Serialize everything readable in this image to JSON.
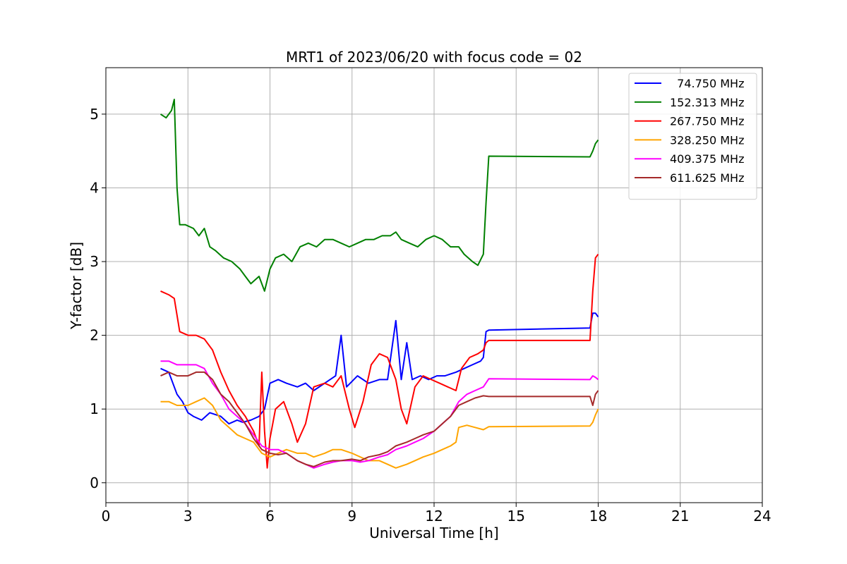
{
  "chart_data": {
    "type": "line",
    "title": "MRT1 of 2023/06/20 with focus code = 02",
    "xlabel": "Universal Time [h]",
    "ylabel": "Y-factor [dB]",
    "xlim": [
      0,
      24
    ],
    "ylim": [
      -0.27,
      5.63
    ],
    "xticks": [
      0,
      3,
      6,
      9,
      12,
      15,
      18,
      21,
      24
    ],
    "yticks": [
      0,
      1,
      2,
      3,
      4,
      5
    ],
    "grid": true,
    "legend_position": "top-right",
    "series": [
      {
        "name": "  74.750 MHz",
        "color": "#0000ff",
        "x": [
          2.0,
          2.3,
          2.6,
          2.8,
          3.0,
          3.2,
          3.5,
          3.8,
          4.2,
          4.5,
          4.8,
          5.0,
          5.3,
          5.6,
          5.8,
          6.0,
          6.3,
          6.6,
          7.0,
          7.3,
          7.6,
          8.0,
          8.4,
          8.6,
          8.8,
          9.2,
          9.6,
          10.0,
          10.3,
          10.6,
          10.8,
          11.0,
          11.2,
          11.5,
          11.8,
          12.1,
          12.4,
          12.8,
          13.1,
          13.4,
          13.7,
          13.8,
          13.9,
          14.0,
          17.7,
          17.8,
          17.9,
          18.0
        ],
        "y": [
          1.55,
          1.5,
          1.2,
          1.1,
          0.95,
          0.9,
          0.85,
          0.95,
          0.9,
          0.8,
          0.85,
          0.82,
          0.85,
          0.9,
          1.0,
          1.35,
          1.4,
          1.35,
          1.3,
          1.35,
          1.25,
          1.35,
          1.45,
          2.0,
          1.3,
          1.45,
          1.35,
          1.4,
          1.4,
          2.2,
          1.4,
          1.9,
          1.4,
          1.45,
          1.4,
          1.45,
          1.45,
          1.5,
          1.55,
          1.6,
          1.65,
          1.7,
          2.05,
          2.07,
          2.1,
          2.3,
          2.3,
          2.25
        ]
      },
      {
        "name": "152.313 MHz",
        "color": "#008000",
        "x": [
          2.0,
          2.2,
          2.4,
          2.5,
          2.6,
          2.7,
          2.9,
          3.2,
          3.4,
          3.6,
          3.8,
          4.0,
          4.3,
          4.6,
          4.9,
          5.1,
          5.3,
          5.6,
          5.8,
          6.0,
          6.2,
          6.5,
          6.8,
          7.1,
          7.4,
          7.7,
          8.0,
          8.3,
          8.6,
          8.9,
          9.2,
          9.5,
          9.8,
          10.1,
          10.4,
          10.6,
          10.8,
          11.1,
          11.4,
          11.7,
          12.0,
          12.3,
          12.6,
          12.9,
          13.1,
          13.4,
          13.6,
          13.8,
          13.9,
          14.0,
          17.7,
          17.8,
          17.9,
          18.0
        ],
        "y": [
          5.0,
          4.95,
          5.05,
          5.2,
          4.0,
          3.5,
          3.5,
          3.45,
          3.35,
          3.45,
          3.2,
          3.15,
          3.05,
          3.0,
          2.9,
          2.8,
          2.7,
          2.8,
          2.6,
          2.9,
          3.05,
          3.1,
          3.0,
          3.2,
          3.25,
          3.2,
          3.3,
          3.3,
          3.25,
          3.2,
          3.25,
          3.3,
          3.3,
          3.35,
          3.35,
          3.4,
          3.3,
          3.25,
          3.2,
          3.3,
          3.35,
          3.3,
          3.2,
          3.2,
          3.1,
          3.0,
          2.95,
          3.1,
          3.8,
          4.43,
          4.42,
          4.5,
          4.6,
          4.65
        ]
      },
      {
        "name": "267.750 MHz",
        "color": "#ff0000",
        "x": [
          2.0,
          2.3,
          2.5,
          2.7,
          3.0,
          3.3,
          3.6,
          3.9,
          4.2,
          4.5,
          4.8,
          5.1,
          5.4,
          5.6,
          5.7,
          5.8,
          5.9,
          6.0,
          6.2,
          6.5,
          6.8,
          7.0,
          7.3,
          7.6,
          8.0,
          8.3,
          8.6,
          8.9,
          9.1,
          9.4,
          9.7,
          10.0,
          10.3,
          10.6,
          10.8,
          11.0,
          11.3,
          11.6,
          11.9,
          12.2,
          12.5,
          12.8,
          13.0,
          13.3,
          13.6,
          13.8,
          13.9,
          14.0,
          17.7,
          17.8,
          17.9,
          18.0
        ],
        "y": [
          2.6,
          2.55,
          2.5,
          2.05,
          2.0,
          2.0,
          1.95,
          1.8,
          1.5,
          1.25,
          1.05,
          0.9,
          0.7,
          0.5,
          1.5,
          0.7,
          0.2,
          0.6,
          1.0,
          1.1,
          0.8,
          0.55,
          0.8,
          1.3,
          1.35,
          1.3,
          1.45,
          1.0,
          0.75,
          1.1,
          1.6,
          1.75,
          1.7,
          1.4,
          1.0,
          0.8,
          1.3,
          1.45,
          1.4,
          1.35,
          1.3,
          1.25,
          1.55,
          1.7,
          1.75,
          1.8,
          1.9,
          1.93,
          1.93,
          2.6,
          3.05,
          3.1
        ]
      },
      {
        "name": "328.250 MHz",
        "color": "#ffa500",
        "x": [
          2.0,
          2.3,
          2.6,
          3.0,
          3.3,
          3.6,
          3.9,
          4.2,
          4.5,
          4.8,
          5.1,
          5.4,
          5.7,
          6.0,
          6.3,
          6.6,
          7.0,
          7.3,
          7.6,
          8.0,
          8.3,
          8.6,
          9.0,
          9.3,
          9.6,
          10.0,
          10.3,
          10.6,
          11.0,
          11.3,
          11.6,
          12.0,
          12.3,
          12.6,
          12.8,
          12.9,
          13.2,
          13.5,
          13.8,
          14.0,
          17.7,
          17.8,
          17.9,
          18.0
        ],
        "y": [
          1.1,
          1.1,
          1.05,
          1.05,
          1.1,
          1.15,
          1.05,
          0.85,
          0.75,
          0.65,
          0.6,
          0.55,
          0.4,
          0.35,
          0.4,
          0.45,
          0.4,
          0.4,
          0.35,
          0.4,
          0.45,
          0.45,
          0.4,
          0.35,
          0.3,
          0.3,
          0.25,
          0.2,
          0.25,
          0.3,
          0.35,
          0.4,
          0.45,
          0.5,
          0.55,
          0.75,
          0.78,
          0.75,
          0.72,
          0.76,
          0.77,
          0.82,
          0.92,
          1.0
        ]
      },
      {
        "name": "409.375 MHz",
        "color": "#ff00ff",
        "x": [
          2.0,
          2.3,
          2.6,
          3.0,
          3.3,
          3.6,
          3.9,
          4.2,
          4.5,
          4.8,
          5.1,
          5.4,
          5.7,
          6.0,
          6.3,
          6.6,
          7.0,
          7.3,
          7.6,
          8.0,
          8.3,
          8.6,
          9.0,
          9.3,
          9.6,
          10.0,
          10.3,
          10.6,
          11.0,
          11.3,
          11.6,
          12.0,
          12.3,
          12.6,
          12.9,
          13.2,
          13.5,
          13.8,
          14.0,
          17.7,
          17.8,
          17.9,
          18.0
        ],
        "y": [
          1.65,
          1.65,
          1.6,
          1.6,
          1.6,
          1.55,
          1.35,
          1.2,
          1.0,
          0.9,
          0.8,
          0.65,
          0.5,
          0.45,
          0.45,
          0.4,
          0.3,
          0.25,
          0.2,
          0.25,
          0.28,
          0.3,
          0.3,
          0.28,
          0.3,
          0.35,
          0.38,
          0.45,
          0.5,
          0.55,
          0.6,
          0.7,
          0.8,
          0.9,
          1.1,
          1.2,
          1.25,
          1.3,
          1.41,
          1.4,
          1.45,
          1.43,
          1.4
        ]
      },
      {
        "name": "611.625 MHz",
        "color": "#a52a2a",
        "x": [
          2.0,
          2.3,
          2.6,
          3.0,
          3.3,
          3.6,
          3.9,
          4.2,
          4.5,
          4.8,
          5.1,
          5.4,
          5.7,
          6.0,
          6.3,
          6.6,
          7.0,
          7.3,
          7.6,
          8.0,
          8.3,
          8.6,
          9.0,
          9.3,
          9.6,
          10.0,
          10.3,
          10.6,
          11.0,
          11.3,
          11.6,
          12.0,
          12.3,
          12.6,
          12.9,
          13.2,
          13.5,
          13.8,
          14.0,
          17.7,
          17.8,
          17.9,
          18.0
        ],
        "y": [
          1.45,
          1.5,
          1.45,
          1.45,
          1.5,
          1.5,
          1.4,
          1.2,
          1.1,
          0.95,
          0.8,
          0.6,
          0.45,
          0.4,
          0.38,
          0.4,
          0.3,
          0.25,
          0.22,
          0.28,
          0.3,
          0.3,
          0.32,
          0.3,
          0.35,
          0.38,
          0.42,
          0.5,
          0.55,
          0.6,
          0.65,
          0.7,
          0.8,
          0.9,
          1.05,
          1.1,
          1.15,
          1.18,
          1.17,
          1.17,
          1.05,
          1.2,
          1.25
        ]
      }
    ]
  }
}
